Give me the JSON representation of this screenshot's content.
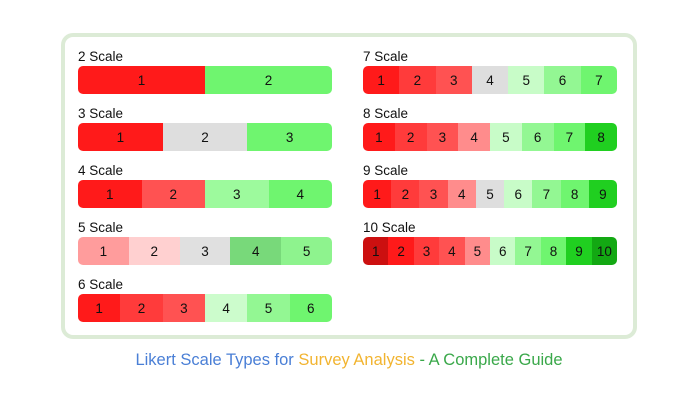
{
  "scales": [
    {
      "label": "2 Scale",
      "cells": [
        "1",
        "2"
      ],
      "colors": [
        "#ff1a1a",
        "#6ff56f"
      ]
    },
    {
      "label": "3 Scale",
      "cells": [
        "1",
        "2",
        "3"
      ],
      "colors": [
        "#ff1a1a",
        "#dedede",
        "#6ff56f"
      ]
    },
    {
      "label": "4 Scale",
      "cells": [
        "1",
        "2",
        "3",
        "4"
      ],
      "colors": [
        "#ff1a1a",
        "#ff5252",
        "#9dfa9d",
        "#6ff56f"
      ]
    },
    {
      "label": "5 Scale",
      "cells": [
        "1",
        "2",
        "3",
        "4",
        "5"
      ],
      "colors": [
        "#ff9c9c",
        "#ffd0d0",
        "#e0e0e0",
        "#78d97a",
        "#8ef38e"
      ]
    },
    {
      "label": "6 Scale",
      "cells": [
        "1",
        "2",
        "3",
        "4",
        "5",
        "6"
      ],
      "colors": [
        "#ff1a1a",
        "#ff3b3b",
        "#ff5252",
        "#ccfccc",
        "#93f793",
        "#6ff56f"
      ]
    },
    {
      "label": "7 Scale",
      "cells": [
        "1",
        "2",
        "3",
        "4",
        "5",
        "6",
        "7"
      ],
      "colors": [
        "#ff1a1a",
        "#ff3b3b",
        "#ff5252",
        "#dedede",
        "#c8fcc8",
        "#93f793",
        "#6ff56f"
      ]
    },
    {
      "label": "8 Scale",
      "cells": [
        "1",
        "2",
        "3",
        "4",
        "5",
        "6",
        "7",
        "8"
      ],
      "colors": [
        "#ff1a1a",
        "#ff3b3b",
        "#ff5252",
        "#ff8c8c",
        "#c8fcc8",
        "#93f793",
        "#6ff56f",
        "#20cf20"
      ]
    },
    {
      "label": "9 Scale",
      "cells": [
        "1",
        "2",
        "3",
        "4",
        "5",
        "6",
        "7",
        "8",
        "9"
      ],
      "colors": [
        "#ff1a1a",
        "#ff3b3b",
        "#ff5252",
        "#ff8c8c",
        "#dedede",
        "#c8fcc8",
        "#93f793",
        "#6ff56f",
        "#20cf20"
      ]
    },
    {
      "label": "10 Scale",
      "cells": [
        "1",
        "2",
        "3",
        "4",
        "5",
        "6",
        "7",
        "8",
        "9",
        "10"
      ],
      "colors": [
        "#cc1010",
        "#ff1a1a",
        "#ff3b3b",
        "#ff5252",
        "#ff8c8c",
        "#c8fcc8",
        "#93f793",
        "#6ff56f",
        "#20cf20",
        "#13a813"
      ]
    }
  ],
  "caption": {
    "part1": "Likert Scale Types for ",
    "part2": "Survey Analysis",
    "part3": " - A Complete Guide",
    "color1": "#4a7fd6",
    "color2": "#f2b430",
    "color3": "#3aa84a"
  }
}
